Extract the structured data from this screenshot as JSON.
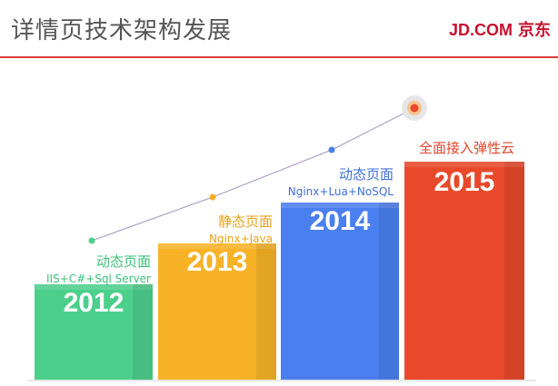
{
  "header": {
    "title": "详情页技术架构发展",
    "brand_en": "JD.COM",
    "brand_cn": "京东"
  },
  "stages": [
    {
      "year": "2012",
      "name": "动态页面",
      "tech": "IIS+C#+Sql Server",
      "color": "#4dcf8c",
      "text_color": "#3ebf7a",
      "dot_color": "#4dcf8c"
    },
    {
      "year": "2013",
      "name": "静态页面",
      "tech": "Nginx+Java",
      "color": "#f7b227",
      "text_color": "#e8a21a",
      "dot_color": "#f4ad2c"
    },
    {
      "year": "2014",
      "name": "动态页面",
      "tech": "Nginx+Lua+NoSQL",
      "color": "#4a7ff0",
      "text_color": "#3f6fd8",
      "dot_color": "#4a7ff0"
    },
    {
      "year": "2015",
      "name": "全面接入弹性云",
      "tech": "",
      "color": "#e8492a",
      "text_color": "#e0452a",
      "dot_color": "#e8492a"
    }
  ],
  "colors": {
    "accent": "#c8102e",
    "trend_line": "#b8a9c9",
    "target_ring": "#e6e6e6",
    "target_core": "#f08a24"
  }
}
